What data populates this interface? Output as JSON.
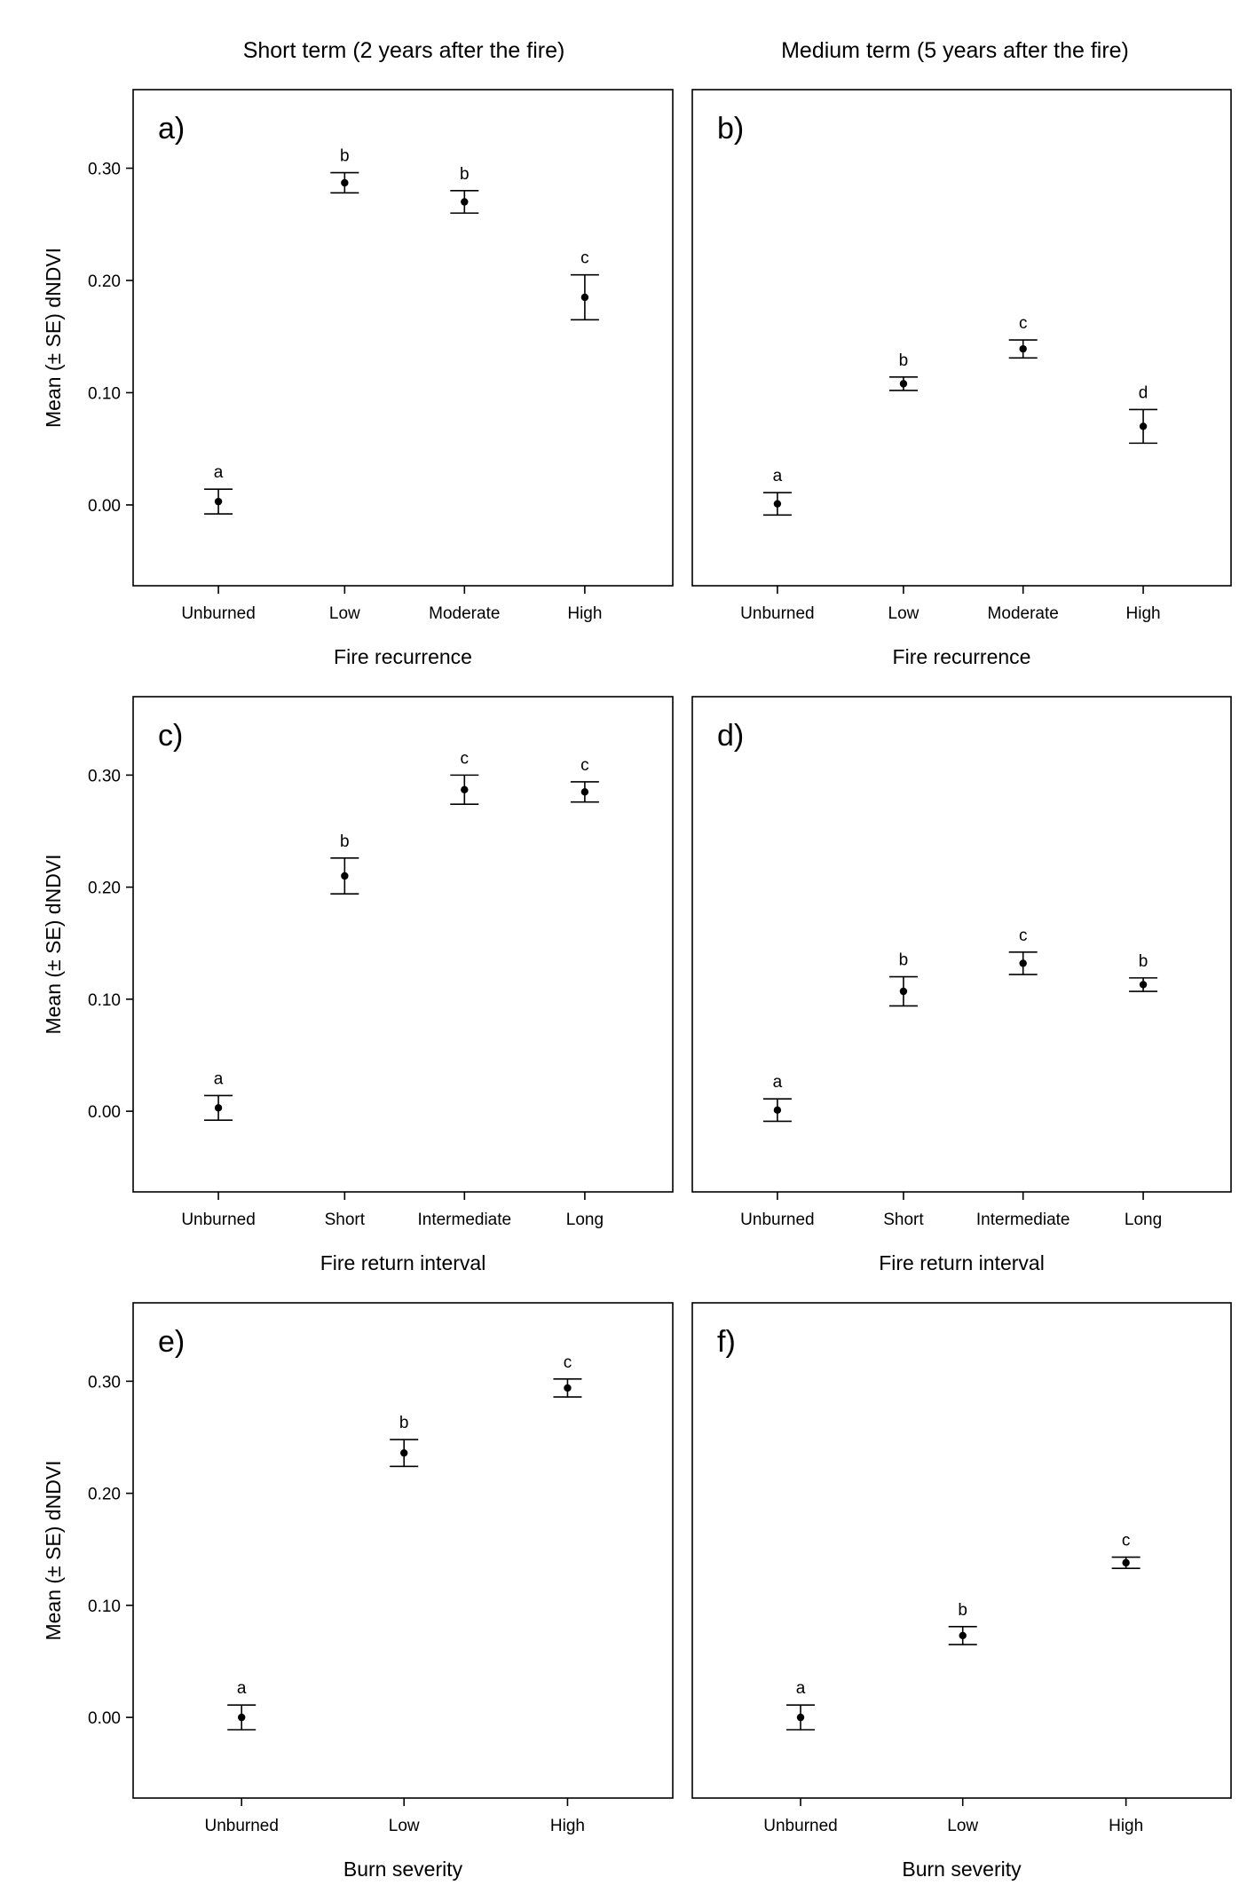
{
  "column_titles": [
    "Short term (2 years after the fire)",
    "Medium term (5 years after the fire)"
  ],
  "chart_data": [
    {
      "type": "scatter",
      "panel": "a)",
      "categories": [
        "Unburned",
        "Low",
        "Moderate",
        "High"
      ],
      "means": [
        0.003,
        0.287,
        0.27,
        0.185
      ],
      "se": [
        0.011,
        0.009,
        0.01,
        0.02
      ],
      "letters": [
        "a",
        "b",
        "b",
        "c"
      ],
      "xlabel": "Fire recurrence",
      "ylabel": "Mean (± SE) dNDVI",
      "yticks": [
        "0.00",
        "0.10",
        "0.20",
        "0.30"
      ],
      "ylim": [
        -0.072,
        0.37
      ]
    },
    {
      "type": "scatter",
      "panel": "b)",
      "categories": [
        "Unburned",
        "Low",
        "Moderate",
        "High"
      ],
      "means": [
        0.001,
        0.108,
        0.139,
        0.07
      ],
      "se": [
        0.01,
        0.006,
        0.008,
        0.015
      ],
      "letters": [
        "a",
        "b",
        "c",
        "d"
      ],
      "xlabel": "Fire recurrence",
      "ylabel": "",
      "yticks": [],
      "ylim": [
        -0.072,
        0.37
      ]
    },
    {
      "type": "scatter",
      "panel": "c)",
      "categories": [
        "Unburned",
        "Short",
        "Intermediate",
        "Long"
      ],
      "means": [
        0.003,
        0.21,
        0.287,
        0.285
      ],
      "se": [
        0.011,
        0.016,
        0.013,
        0.009
      ],
      "letters": [
        "a",
        "b",
        "c",
        "c"
      ],
      "xlabel": "Fire return interval",
      "ylabel": "Mean (± SE) dNDVI",
      "yticks": [
        "0.00",
        "0.10",
        "0.20",
        "0.30"
      ],
      "ylim": [
        -0.072,
        0.37
      ]
    },
    {
      "type": "scatter",
      "panel": "d)",
      "categories": [
        "Unburned",
        "Short",
        "Intermediate",
        "Long"
      ],
      "means": [
        0.001,
        0.107,
        0.132,
        0.113
      ],
      "se": [
        0.01,
        0.013,
        0.01,
        0.006
      ],
      "letters": [
        "a",
        "b",
        "c",
        "b"
      ],
      "xlabel": "Fire return interval",
      "ylabel": "",
      "yticks": [],
      "ylim": [
        -0.072,
        0.37
      ]
    },
    {
      "type": "scatter",
      "panel": "e)",
      "categories": [
        "Unburned",
        "Low",
        "High"
      ],
      "means": [
        0.0,
        0.236,
        0.294
      ],
      "se": [
        0.011,
        0.012,
        0.008
      ],
      "letters": [
        "a",
        "b",
        "c"
      ],
      "xlabel": "Burn severity",
      "ylabel": "Mean (± SE) dNDVI",
      "yticks": [
        "0.00",
        "0.10",
        "0.20",
        "0.30"
      ],
      "ylim": [
        -0.072,
        0.37
      ]
    },
    {
      "type": "scatter",
      "panel": "f)",
      "categories": [
        "Unburned",
        "Low",
        "High"
      ],
      "means": [
        0.0,
        0.073,
        0.138
      ],
      "se": [
        0.011,
        0.008,
        0.005
      ],
      "letters": [
        "a",
        "b",
        "c"
      ],
      "xlabel": "Burn severity",
      "ylabel": "",
      "yticks": [],
      "ylim": [
        -0.072,
        0.37
      ]
    }
  ]
}
